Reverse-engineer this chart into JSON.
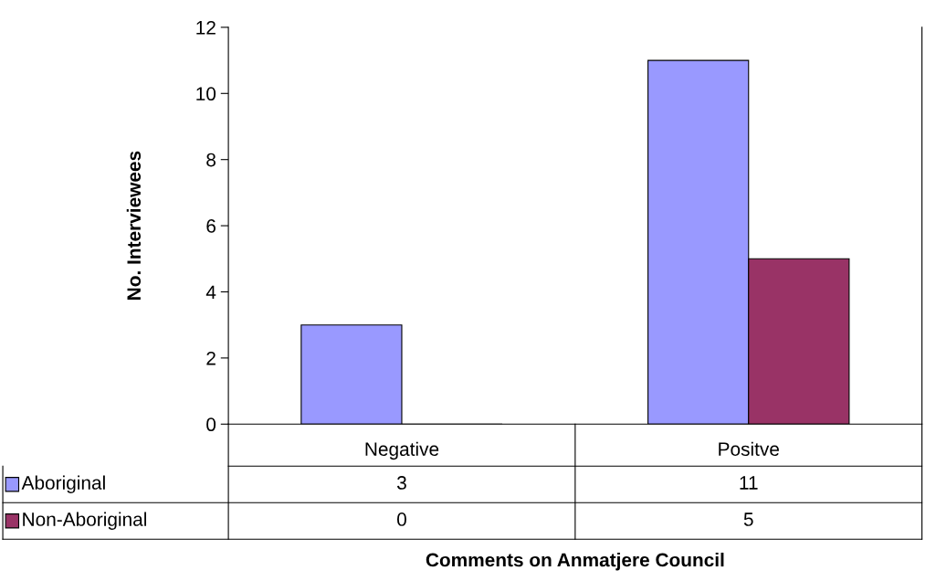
{
  "chart_data": {
    "type": "bar",
    "xlabel": "Comments on Anmatjere Council",
    "ylabel": "No. Interviewees",
    "categories": [
      "Negative",
      "Positve"
    ],
    "series": [
      {
        "name": "Aboriginal",
        "color": "#9999ff",
        "values": [
          3,
          11
        ]
      },
      {
        "name": "Non-Aboriginal",
        "color": "#993366",
        "values": [
          0,
          5
        ]
      }
    ],
    "ylim": [
      0,
      12
    ],
    "yticks": [
      0,
      2,
      4,
      6,
      8,
      10,
      12
    ],
    "grid": false,
    "data_labels": true,
    "legend": "bottom left"
  }
}
